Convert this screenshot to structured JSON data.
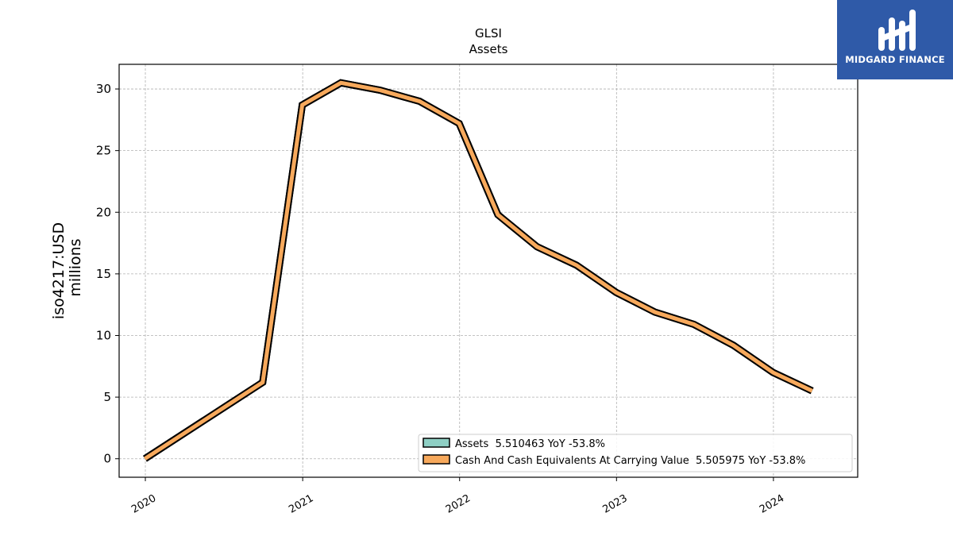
{
  "chart_data": {
    "type": "line",
    "title": "GLSI",
    "subtitle": "Assets",
    "ylabel_line1": "iso4217:USD",
    "ylabel_line2": "millions",
    "ylim": [
      -1.5,
      32
    ],
    "yticks": [
      0,
      5,
      10,
      15,
      20,
      25,
      30
    ],
    "xticks": [
      {
        "label": "2020",
        "x": "2020-01-01"
      },
      {
        "label": "2021",
        "x": "2021-01-01"
      },
      {
        "label": "2022",
        "x": "2022-01-01"
      },
      {
        "label": "2023",
        "x": "2023-01-01"
      },
      {
        "label": "2024",
        "x": "2024-01-01"
      }
    ],
    "x": [
      "2019-12-31",
      "2020-09-30",
      "2020-12-31",
      "2021-03-31",
      "2021-06-30",
      "2021-09-30",
      "2021-12-31",
      "2022-03-31",
      "2022-06-30",
      "2022-09-30",
      "2022-12-31",
      "2023-03-31",
      "2023-06-30",
      "2023-09-30",
      "2023-12-31",
      "2024-03-31"
    ],
    "grid": true,
    "legend_position": "lower-right",
    "series": [
      {
        "name": "Assets",
        "legend_label": "Assets  5.510463 YoY -53.8%",
        "color": "#8ecfc4",
        "values": [
          0.0,
          6.2,
          28.7,
          30.5,
          29.9,
          29.0,
          27.2,
          19.8,
          17.2,
          15.7,
          13.5,
          11.9,
          10.9,
          9.2,
          7.0,
          5.51
        ]
      },
      {
        "name": "Cash And Cash Equivalents At Carrying Value",
        "legend_label": "Cash And Cash Equivalents At Carrying Value  5.505975 YoY -53.8%",
        "color": "#f7a95c",
        "values": [
          0.0,
          6.2,
          28.7,
          30.5,
          29.9,
          29.0,
          27.2,
          19.8,
          17.2,
          15.7,
          13.5,
          11.9,
          10.9,
          9.2,
          7.0,
          5.51
        ]
      }
    ]
  },
  "logo": {
    "text": "MIDGARD FINANCE",
    "bg_color": "#2f5aa8"
  }
}
